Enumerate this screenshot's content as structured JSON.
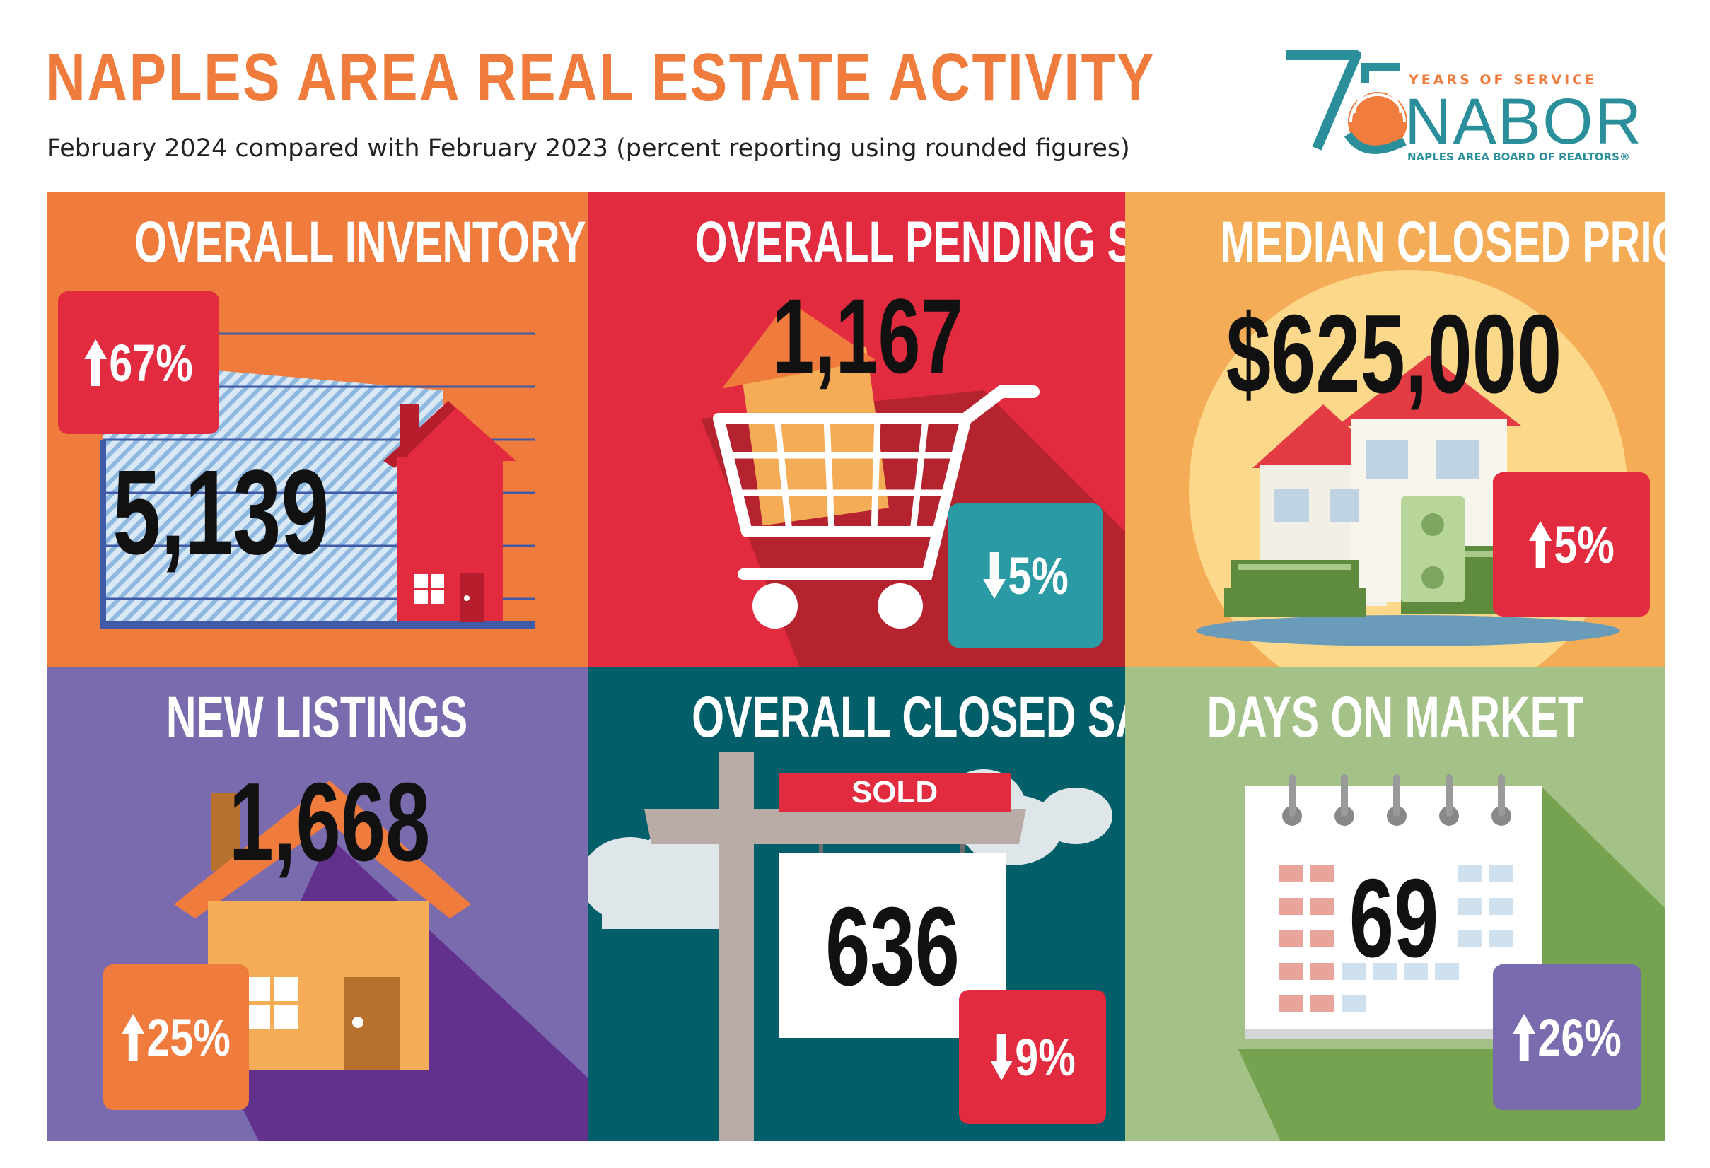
{
  "header": {
    "title": "NAPLES AREA REAL ESTATE ACTIVITY",
    "subtitle": "February 2024 compared with February 2023 (percent reporting using rounded figures)"
  },
  "logo": {
    "number": "75",
    "years": "YEARS OF SERVICE",
    "name": "NABOR",
    "board": "NAPLES AREA BOARD OF REALTORS®"
  },
  "panels": {
    "inventory": {
      "title": "OVERALL INVENTORY",
      "value": "5,139",
      "change": "67%",
      "direction": "up",
      "bg": "#ef7c3d",
      "badge_color": "#e22b3f"
    },
    "pending": {
      "title": "OVERALL PENDING SALES",
      "value": "1,167",
      "change": "5%",
      "direction": "down",
      "bg": "#e22b3f",
      "badge_color": "#2a9aa5"
    },
    "median_price": {
      "title": "MEDIAN CLOSED PRICE",
      "value": "$625,000",
      "change": "5%",
      "direction": "up",
      "bg": "#f4ad56",
      "badge_color": "#e22b3f"
    },
    "new_listings": {
      "title": "NEW LISTINGS",
      "value": "1,668",
      "change": "25%",
      "direction": "up",
      "bg": "#7a6aae",
      "badge_color": "#ef7c3d"
    },
    "closed_sales": {
      "title": "OVERALL CLOSED SALES",
      "value": "636",
      "change": "9%",
      "direction": "down",
      "sign": "SOLD",
      "bg": "#025f69",
      "badge_color": "#e22b3f"
    },
    "days_on_market": {
      "title": "DAYS ON MARKET",
      "value": "69",
      "change": "26%",
      "direction": "up",
      "bg": "#a4c187",
      "badge_color": "#7a6aae"
    }
  },
  "icons": [
    "house-icon",
    "shopping-cart-icon",
    "money-stack-icon",
    "sold-sign-icon",
    "calendar-icon",
    "arrow-up-icon",
    "arrow-down-icon"
  ]
}
